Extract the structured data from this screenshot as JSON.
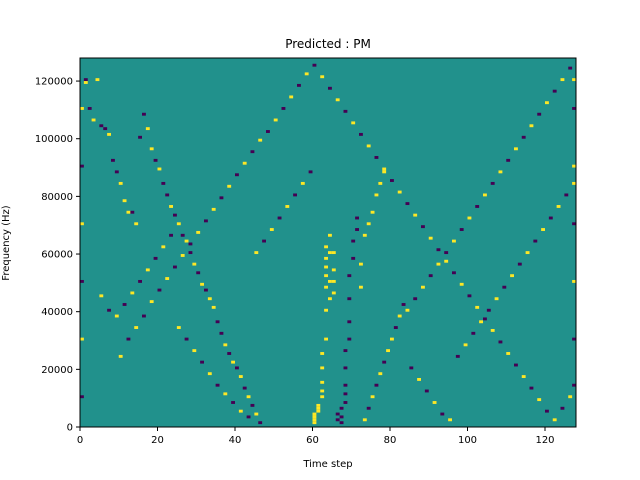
{
  "chart_data": {
    "type": "heatmap",
    "title": "Predicted : PM",
    "xlabel": "Time step",
    "ylabel": "Frequency (Hz)",
    "xlim": [
      0,
      128
    ],
    "ylim": [
      0,
      128000
    ],
    "x_ticks": [
      0,
      20,
      40,
      60,
      80,
      100,
      120
    ],
    "y_ticks": [
      0,
      20000,
      40000,
      60000,
      80000,
      100000,
      120000
    ],
    "grid": false,
    "colors": {
      "background": "#21918c",
      "high": "#fde725",
      "low": "#440154"
    },
    "n_rows": 128,
    "n_cols": 128,
    "cell_height_hz": 1000,
    "cells": [
      [
        1,
        120000,
        0
      ],
      [
        1,
        119000,
        1
      ],
      [
        2,
        110000,
        0
      ],
      [
        3,
        106000,
        1
      ],
      [
        4,
        120000,
        1
      ],
      [
        5,
        104000,
        0
      ],
      [
        6,
        103000,
        0
      ],
      [
        7,
        101000,
        1
      ],
      [
        8,
        92000,
        0
      ],
      [
        9,
        88000,
        0
      ],
      [
        10,
        84000,
        1
      ],
      [
        11,
        78000,
        1
      ],
      [
        12,
        74000,
        1
      ],
      [
        13,
        74000,
        0
      ],
      [
        14,
        70000,
        1
      ],
      [
        15,
        100000,
        0
      ],
      [
        16,
        108000,
        0
      ],
      [
        17,
        103000,
        1
      ],
      [
        18,
        96000,
        1
      ],
      [
        19,
        92000,
        0
      ],
      [
        20,
        89000,
        1
      ],
      [
        21,
        84000,
        0
      ],
      [
        22,
        80000,
        0
      ],
      [
        23,
        76000,
        1
      ],
      [
        24,
        73000,
        0
      ],
      [
        25,
        70000,
        1
      ],
      [
        26,
        66000,
        0
      ],
      [
        27,
        64000,
        1
      ],
      [
        28,
        60000,
        0
      ],
      [
        29,
        56000,
        1
      ],
      [
        30,
        53000,
        0
      ],
      [
        31,
        49000,
        1
      ],
      [
        32,
        47000,
        0
      ],
      [
        33,
        44000,
        1
      ],
      [
        34,
        41000,
        1
      ],
      [
        35,
        36000,
        0
      ],
      [
        36,
        32000,
        0
      ],
      [
        37,
        28000,
        1
      ],
      [
        38,
        25000,
        0
      ],
      [
        39,
        22000,
        1
      ],
      [
        40,
        20000,
        0
      ],
      [
        41,
        17000,
        1
      ],
      [
        42,
        13000,
        0
      ],
      [
        43,
        10000,
        1
      ],
      [
        44,
        7000,
        0
      ],
      [
        45,
        4000,
        1
      ],
      [
        46,
        1000,
        0
      ],
      [
        10,
        24000,
        1
      ],
      [
        12,
        30000,
        0
      ],
      [
        14,
        34000,
        1
      ],
      [
        16,
        38000,
        0
      ],
      [
        18,
        43000,
        1
      ],
      [
        20,
        47000,
        0
      ],
      [
        22,
        51000,
        1
      ],
      [
        24,
        55000,
        0
      ],
      [
        26,
        59000,
        1
      ],
      [
        28,
        63000,
        0
      ],
      [
        30,
        67000,
        1
      ],
      [
        32,
        71000,
        0
      ],
      [
        34,
        75000,
        1
      ],
      [
        36,
        79000,
        0
      ],
      [
        38,
        83000,
        1
      ],
      [
        40,
        87000,
        0
      ],
      [
        42,
        91000,
        1
      ],
      [
        44,
        95000,
        0
      ],
      [
        46,
        99000,
        1
      ],
      [
        48,
        102000,
        0
      ],
      [
        50,
        106000,
        1
      ],
      [
        52,
        110000,
        0
      ],
      [
        54,
        114000,
        1
      ],
      [
        56,
        118000,
        0
      ],
      [
        58,
        122000,
        1
      ],
      [
        60,
        125000,
        0
      ],
      [
        62,
        121000,
        1
      ],
      [
        64,
        117000,
        0
      ],
      [
        66,
        113000,
        1
      ],
      [
        68,
        109000,
        0
      ],
      [
        70,
        105000,
        1
      ],
      [
        72,
        101000,
        0
      ],
      [
        74,
        97000,
        1
      ],
      [
        76,
        93000,
        0
      ],
      [
        78,
        89000,
        1
      ],
      [
        80,
        85000,
        0
      ],
      [
        82,
        81000,
        1
      ],
      [
        84,
        77000,
        0
      ],
      [
        86,
        73000,
        1
      ],
      [
        88,
        69000,
        0
      ],
      [
        90,
        65000,
        1
      ],
      [
        92,
        61000,
        0
      ],
      [
        94,
        57000,
        1
      ],
      [
        96,
        53000,
        0
      ],
      [
        98,
        49000,
        1
      ],
      [
        100,
        45000,
        0
      ],
      [
        102,
        41000,
        1
      ],
      [
        104,
        37000,
        0
      ],
      [
        106,
        33000,
        1
      ],
      [
        108,
        29000,
        0
      ],
      [
        110,
        25000,
        1
      ],
      [
        112,
        21000,
        0
      ],
      [
        114,
        17000,
        1
      ],
      [
        116,
        13000,
        0
      ],
      [
        118,
        9000,
        1
      ],
      [
        120,
        5000,
        0
      ],
      [
        122,
        2000,
        1
      ],
      [
        124,
        6000,
        0
      ],
      [
        126,
        10000,
        1
      ],
      [
        127,
        14000,
        0
      ],
      [
        60,
        1000,
        1
      ],
      [
        60,
        2000,
        1
      ],
      [
        60,
        3000,
        1
      ],
      [
        60,
        4000,
        1
      ],
      [
        61,
        5000,
        1
      ],
      [
        61,
        6000,
        1
      ],
      [
        61,
        7000,
        1
      ],
      [
        62,
        10000,
        1
      ],
      [
        62,
        12000,
        1
      ],
      [
        62,
        15000,
        1
      ],
      [
        62,
        20000,
        1
      ],
      [
        62,
        25000,
        1
      ],
      [
        63,
        30000,
        1
      ],
      [
        63,
        40000,
        1
      ],
      [
        63,
        48000,
        1
      ],
      [
        63,
        52000,
        1
      ],
      [
        63,
        55000,
        1
      ],
      [
        63,
        58000,
        1
      ],
      [
        63,
        62000,
        1
      ],
      [
        64,
        44000,
        1
      ],
      [
        64,
        50000,
        1
      ],
      [
        64,
        60000,
        1
      ],
      [
        64,
        66000,
        1
      ],
      [
        65,
        46000,
        1
      ],
      [
        65,
        50000,
        1
      ],
      [
        65,
        54000,
        1
      ],
      [
        65,
        60000,
        1
      ],
      [
        66,
        2000,
        0
      ],
      [
        66,
        4000,
        0
      ],
      [
        67,
        1000,
        0
      ],
      [
        67,
        3000,
        0
      ],
      [
        67,
        6000,
        0
      ],
      [
        68,
        8000,
        0
      ],
      [
        68,
        11000,
        0
      ],
      [
        68,
        14000,
        0
      ],
      [
        68,
        20000,
        0
      ],
      [
        68,
        26000,
        0
      ],
      [
        69,
        30000,
        0
      ],
      [
        69,
        36000,
        0
      ],
      [
        69,
        44000,
        0
      ],
      [
        69,
        52000,
        0
      ],
      [
        70,
        58000,
        0
      ],
      [
        70,
        64000,
        0
      ],
      [
        71,
        68000,
        0
      ],
      [
        71,
        72000,
        0
      ],
      [
        72,
        48000,
        1
      ],
      [
        72,
        56000,
        1
      ],
      [
        73,
        66000,
        1
      ],
      [
        74,
        70000,
        1
      ],
      [
        75,
        74000,
        1
      ],
      [
        76,
        80000,
        1
      ],
      [
        77,
        84000,
        1
      ],
      [
        78,
        88000,
        1
      ],
      [
        5,
        45000,
        1
      ],
      [
        7,
        40000,
        0
      ],
      [
        9,
        38000,
        1
      ],
      [
        11,
        42000,
        0
      ],
      [
        13,
        46000,
        1
      ],
      [
        15,
        50000,
        0
      ],
      [
        17,
        54000,
        1
      ],
      [
        19,
        58000,
        0
      ],
      [
        21,
        62000,
        1
      ],
      [
        23,
        66000,
        0
      ],
      [
        25,
        34000,
        1
      ],
      [
        27,
        30000,
        0
      ],
      [
        29,
        26000,
        1
      ],
      [
        31,
        22000,
        0
      ],
      [
        33,
        18000,
        1
      ],
      [
        35,
        14000,
        0
      ],
      [
        37,
        11000,
        1
      ],
      [
        39,
        8000,
        0
      ],
      [
        41,
        5000,
        1
      ],
      [
        43,
        3000,
        0
      ],
      [
        84,
        40000,
        1
      ],
      [
        86,
        44000,
        0
      ],
      [
        88,
        48000,
        1
      ],
      [
        90,
        52000,
        0
      ],
      [
        92,
        56000,
        1
      ],
      [
        94,
        60000,
        0
      ],
      [
        96,
        64000,
        1
      ],
      [
        98,
        68000,
        0
      ],
      [
        100,
        72000,
        1
      ],
      [
        102,
        76000,
        0
      ],
      [
        104,
        80000,
        1
      ],
      [
        106,
        84000,
        0
      ],
      [
        108,
        88000,
        1
      ],
      [
        110,
        92000,
        0
      ],
      [
        112,
        96000,
        1
      ],
      [
        114,
        100000,
        0
      ],
      [
        116,
        104000,
        1
      ],
      [
        118,
        108000,
        0
      ],
      [
        120,
        112000,
        1
      ],
      [
        122,
        116000,
        0
      ],
      [
        124,
        120000,
        1
      ],
      [
        126,
        124000,
        0
      ],
      [
        85,
        20000,
        0
      ],
      [
        87,
        16000,
        1
      ],
      [
        89,
        12000,
        0
      ],
      [
        91,
        8000,
        1
      ],
      [
        93,
        4000,
        0
      ],
      [
        95,
        2000,
        1
      ],
      [
        97,
        24000,
        0
      ],
      [
        99,
        28000,
        1
      ],
      [
        101,
        32000,
        0
      ],
      [
        103,
        36000,
        1
      ],
      [
        105,
        40000,
        0
      ],
      [
        107,
        44000,
        1
      ],
      [
        109,
        48000,
        0
      ],
      [
        111,
        52000,
        1
      ],
      [
        113,
        56000,
        0
      ],
      [
        115,
        60000,
        1
      ],
      [
        117,
        64000,
        0
      ],
      [
        119,
        68000,
        1
      ],
      [
        121,
        72000,
        0
      ],
      [
        123,
        76000,
        1
      ],
      [
        125,
        80000,
        0
      ],
      [
        127,
        84000,
        1
      ],
      [
        0,
        10000,
        0
      ],
      [
        0,
        30000,
        1
      ],
      [
        0,
        50000,
        0
      ],
      [
        0,
        70000,
        1
      ],
      [
        0,
        90000,
        0
      ],
      [
        0,
        110000,
        1
      ],
      [
        127,
        30000,
        0
      ],
      [
        127,
        50000,
        1
      ],
      [
        127,
        70000,
        0
      ],
      [
        127,
        90000,
        1
      ],
      [
        127,
        110000,
        0
      ],
      [
        127,
        120000,
        1
      ],
      [
        45,
        60000,
        1
      ],
      [
        47,
        64000,
        0
      ],
      [
        49,
        68000,
        1
      ],
      [
        51,
        72000,
        0
      ],
      [
        53,
        76000,
        1
      ],
      [
        55,
        80000,
        0
      ],
      [
        57,
        84000,
        1
      ],
      [
        59,
        88000,
        0
      ],
      [
        80,
        30000,
        1
      ],
      [
        81,
        34000,
        0
      ],
      [
        82,
        38000,
        1
      ],
      [
        83,
        42000,
        0
      ],
      [
        79,
        26000,
        1
      ],
      [
        78,
        22000,
        0
      ],
      [
        77,
        18000,
        1
      ],
      [
        76,
        14000,
        0
      ],
      [
        75,
        10000,
        1
      ],
      [
        74,
        6000,
        0
      ],
      [
        73,
        2000,
        1
      ]
    ]
  }
}
